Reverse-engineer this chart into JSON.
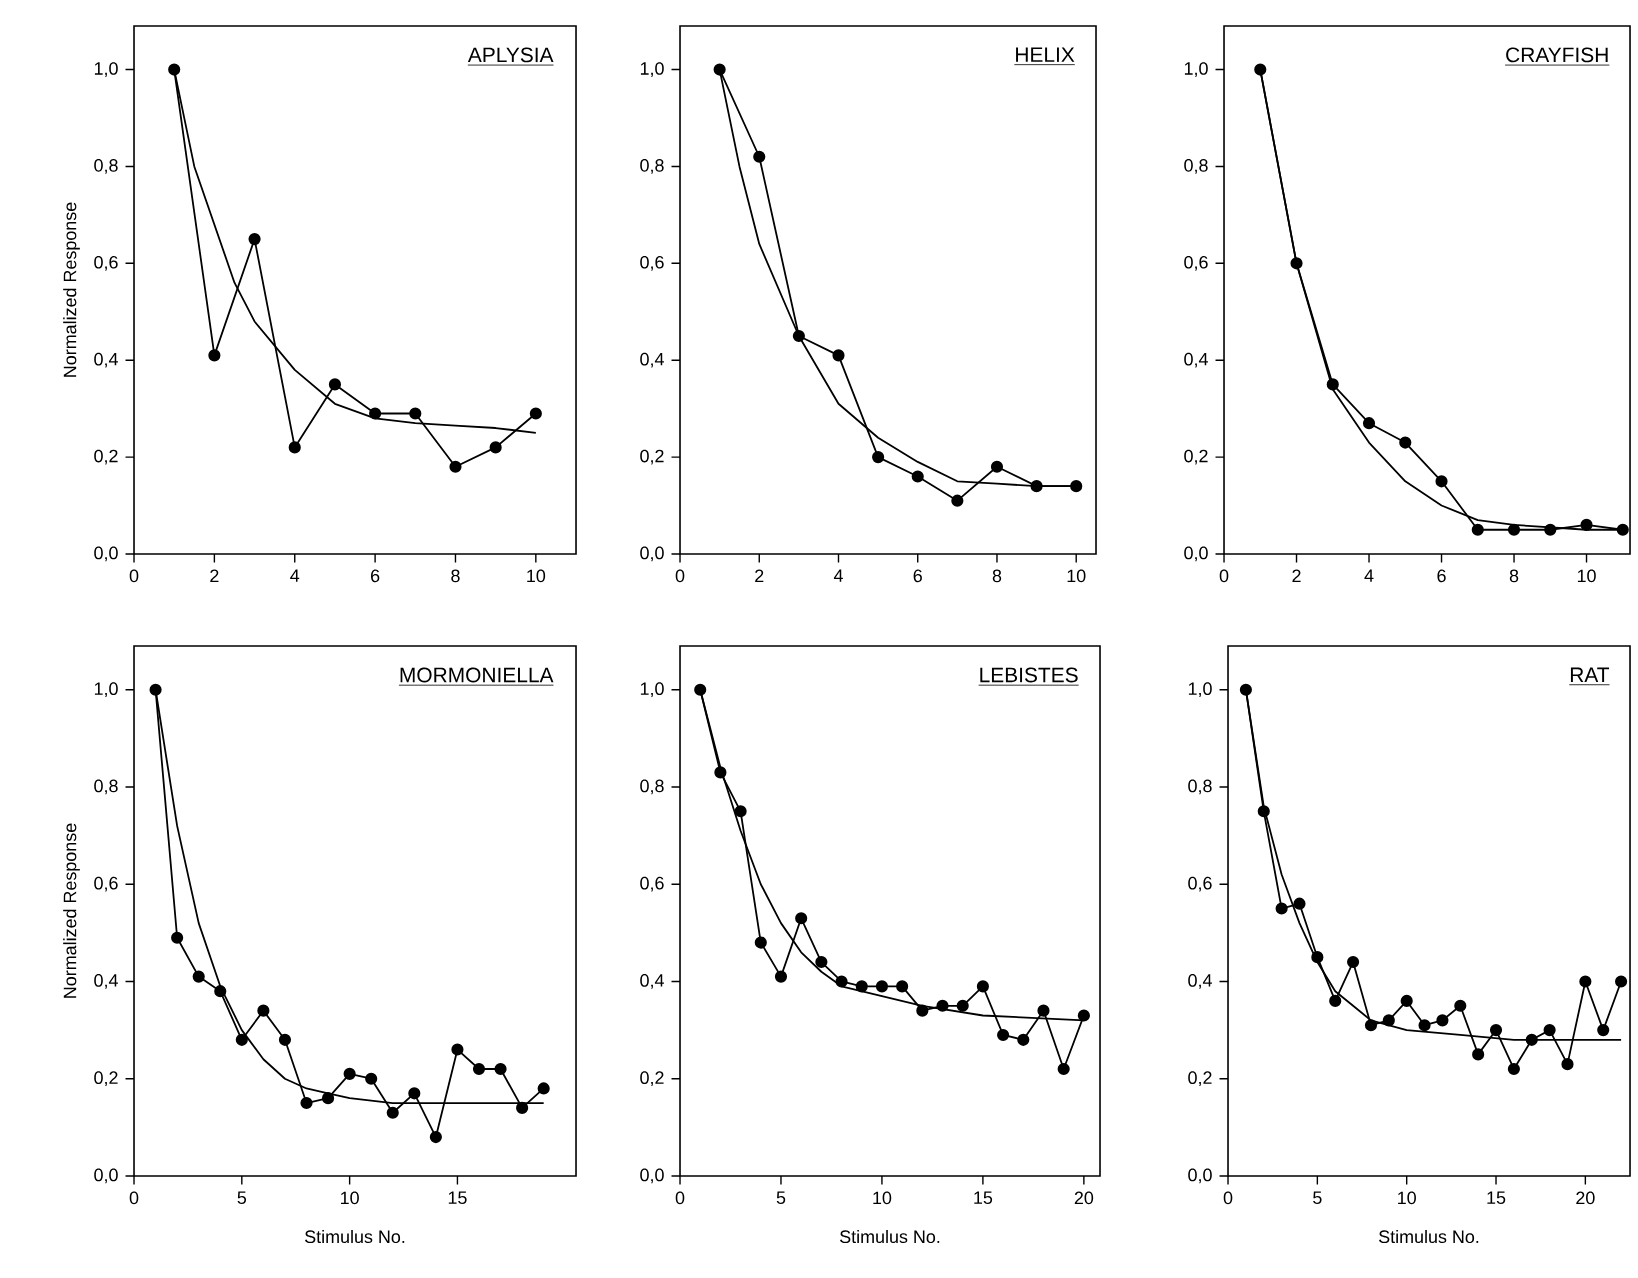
{
  "chart_data": [
    {
      "type": "line",
      "title": "APLYSIA",
      "ylabel": "Normalized Response",
      "xlim": [
        0,
        11
      ],
      "ylim": [
        0,
        1.09
      ],
      "xticks": [
        0,
        2,
        4,
        6,
        8,
        10
      ],
      "yticks": [
        {
          "value": 0,
          "label": "0,0"
        },
        {
          "value": 0.2,
          "label": "0,2"
        },
        {
          "value": 0.4,
          "label": "0,4"
        },
        {
          "value": 0.6,
          "label": "0,6"
        },
        {
          "value": 0.8,
          "label": "0,8"
        },
        {
          "value": 1.0,
          "label": "1,0"
        }
      ],
      "grid": false,
      "series": [
        {
          "color": "#000000",
          "marker": "circle",
          "line_style": "solid",
          "x": [
            1,
            2,
            3,
            4,
            5,
            6,
            7,
            8,
            9,
            10
          ],
          "values": [
            1.0,
            0.41,
            0.65,
            0.22,
            0.35,
            0.29,
            0.29,
            0.18,
            0.22,
            0.29
          ]
        },
        {
          "color": "#000000",
          "marker": "none",
          "line_style": "solid",
          "x": [
            1,
            1.5,
            2,
            2.5,
            3,
            4,
            5,
            6,
            7,
            8,
            9,
            10
          ],
          "values": [
            1.0,
            0.8,
            0.68,
            0.56,
            0.48,
            0.38,
            0.31,
            0.28,
            0.27,
            0.265,
            0.26,
            0.25
          ]
        }
      ]
    },
    {
      "type": "line",
      "title": "HELIX",
      "xlim": [
        0,
        10.5
      ],
      "ylim": [
        0,
        1.09
      ],
      "xticks": [
        0,
        2,
        4,
        6,
        8,
        10
      ],
      "yticks": [
        {
          "value": 0,
          "label": "0,0"
        },
        {
          "value": 0.2,
          "label": "0,2"
        },
        {
          "value": 0.4,
          "label": "0,4"
        },
        {
          "value": 0.6,
          "label": "0,6"
        },
        {
          "value": 0.8,
          "label": "0,8"
        },
        {
          "value": 1.0,
          "label": "1,0"
        }
      ],
      "grid": false,
      "series": [
        {
          "color": "#000000",
          "marker": "circle",
          "line_style": "solid",
          "x": [
            1,
            2,
            3,
            4,
            5,
            6,
            7,
            8,
            9,
            10
          ],
          "values": [
            1.0,
            0.82,
            0.45,
            0.41,
            0.2,
            0.16,
            0.11,
            0.18,
            0.14,
            0.14
          ]
        },
        {
          "color": "#000000",
          "marker": "none",
          "line_style": "solid",
          "x": [
            1,
            1.5,
            2,
            3,
            4,
            5,
            6,
            7,
            8,
            9,
            10
          ],
          "values": [
            1.0,
            0.8,
            0.64,
            0.45,
            0.31,
            0.24,
            0.19,
            0.15,
            0.145,
            0.14,
            0.14
          ]
        }
      ]
    },
    {
      "type": "line",
      "title": "CRAYFISH",
      "xlim": [
        0,
        11.2
      ],
      "ylim": [
        0,
        1.09
      ],
      "xticks": [
        0,
        2,
        4,
        6,
        8,
        10
      ],
      "yticks": [
        {
          "value": 0,
          "label": "0,0"
        },
        {
          "value": 0.2,
          "label": "0,2"
        },
        {
          "value": 0.4,
          "label": "0,4"
        },
        {
          "value": 0.6,
          "label": "0,6"
        },
        {
          "value": 0.8,
          "label": "0,8"
        },
        {
          "value": 1.0,
          "label": "1,0"
        }
      ],
      "grid": false,
      "series": [
        {
          "color": "#000000",
          "marker": "circle",
          "line_style": "solid",
          "x": [
            1,
            2,
            3,
            4,
            5,
            6,
            7,
            8,
            9,
            10,
            11
          ],
          "values": [
            1.0,
            0.6,
            0.35,
            0.27,
            0.23,
            0.15,
            0.05,
            0.05,
            0.05,
            0.06,
            0.05
          ]
        },
        {
          "color": "#000000",
          "marker": "none",
          "line_style": "solid",
          "x": [
            1,
            2,
            3,
            4,
            5,
            6,
            7,
            8,
            9,
            10,
            11
          ],
          "values": [
            1.0,
            0.6,
            0.34,
            0.23,
            0.15,
            0.1,
            0.07,
            0.06,
            0.055,
            0.05,
            0.05
          ]
        }
      ]
    },
    {
      "type": "line",
      "title": "MORMONIELLA",
      "xlabel": "Stimulus No.",
      "ylabel": "Normalized Response",
      "xlim": [
        0,
        20.5
      ],
      "ylim": [
        0,
        1.09
      ],
      "xticks": [
        0,
        5,
        10,
        15
      ],
      "yticks": [
        {
          "value": 0,
          "label": "0,0"
        },
        {
          "value": 0.2,
          "label": "0,2"
        },
        {
          "value": 0.4,
          "label": "0,4"
        },
        {
          "value": 0.6,
          "label": "0,6"
        },
        {
          "value": 0.8,
          "label": "0,8"
        },
        {
          "value": 1.0,
          "label": "1,0"
        }
      ],
      "grid": false,
      "series": [
        {
          "color": "#000000",
          "marker": "circle",
          "line_style": "solid",
          "x": [
            1,
            2,
            3,
            4,
            5,
            6,
            7,
            8,
            9,
            10,
            11,
            12,
            13,
            14,
            15,
            16,
            17,
            18,
            19
          ],
          "values": [
            1.0,
            0.49,
            0.41,
            0.38,
            0.28,
            0.34,
            0.28,
            0.15,
            0.16,
            0.21,
            0.2,
            0.13,
            0.17,
            0.08,
            0.26,
            0.22,
            0.22,
            0.14,
            0.18
          ]
        },
        {
          "color": "#000000",
          "marker": "none",
          "line_style": "solid",
          "x": [
            1,
            2,
            3,
            4,
            5,
            6,
            7,
            8,
            9,
            10,
            12,
            15,
            19
          ],
          "values": [
            1.0,
            0.72,
            0.52,
            0.39,
            0.3,
            0.24,
            0.2,
            0.18,
            0.17,
            0.16,
            0.15,
            0.15,
            0.15
          ]
        }
      ]
    },
    {
      "type": "line",
      "title": "LEBISTES",
      "xlabel": "Stimulus No.",
      "xlim": [
        0,
        20.8
      ],
      "ylim": [
        0,
        1.09
      ],
      "xticks": [
        0,
        5,
        10,
        15,
        20
      ],
      "yticks": [
        {
          "value": 0,
          "label": "0,0"
        },
        {
          "value": 0.2,
          "label": "0,2"
        },
        {
          "value": 0.4,
          "label": "0,4"
        },
        {
          "value": 0.6,
          "label": "0,6"
        },
        {
          "value": 0.8,
          "label": "0,8"
        },
        {
          "value": 1.0,
          "label": "1,0"
        }
      ],
      "grid": false,
      "series": [
        {
          "color": "#000000",
          "marker": "circle",
          "line_style": "solid",
          "x": [
            1,
            2,
            3,
            4,
            5,
            6,
            7,
            8,
            9,
            10,
            11,
            12,
            13,
            14,
            15,
            16,
            17,
            18,
            19,
            20
          ],
          "values": [
            1.0,
            0.83,
            0.75,
            0.48,
            0.41,
            0.53,
            0.44,
            0.4,
            0.39,
            0.39,
            0.39,
            0.34,
            0.35,
            0.35,
            0.39,
            0.29,
            0.28,
            0.34,
            0.22,
            0.33
          ]
        },
        {
          "color": "#000000",
          "marker": "none",
          "line_style": "solid",
          "x": [
            1,
            2,
            3,
            4,
            5,
            6,
            7,
            8,
            10,
            12,
            15,
            20
          ],
          "values": [
            1.0,
            0.84,
            0.71,
            0.6,
            0.52,
            0.46,
            0.42,
            0.39,
            0.37,
            0.35,
            0.33,
            0.32
          ]
        }
      ]
    },
    {
      "type": "line",
      "title": "RAT",
      "xlabel": "Stimulus No.",
      "xlim": [
        0,
        22.5
      ],
      "ylim": [
        0,
        1.09
      ],
      "xticks": [
        0,
        5,
        10,
        15,
        20
      ],
      "yticks": [
        {
          "value": 0,
          "label": "0,0"
        },
        {
          "value": 0.2,
          "label": "0,2"
        },
        {
          "value": 0.4,
          "label": "0,4"
        },
        {
          "value": 0.6,
          "label": "0,6"
        },
        {
          "value": 0.8,
          "label": "0,8"
        },
        {
          "value": 1.0,
          "label": "1,0"
        }
      ],
      "grid": false,
      "series": [
        {
          "color": "#000000",
          "marker": "circle",
          "line_style": "solid",
          "x": [
            1,
            2,
            3,
            4,
            5,
            6,
            7,
            8,
            9,
            10,
            11,
            12,
            13,
            14,
            15,
            16,
            17,
            18,
            19,
            20,
            21,
            22
          ],
          "values": [
            1.0,
            0.75,
            0.55,
            0.56,
            0.45,
            0.36,
            0.44,
            0.31,
            0.32,
            0.36,
            0.31,
            0.32,
            0.35,
            0.25,
            0.3,
            0.22,
            0.28,
            0.3,
            0.23,
            0.4,
            0.3,
            0.4
          ]
        },
        {
          "color": "#000000",
          "marker": "none",
          "line_style": "solid",
          "x": [
            1,
            2,
            3,
            4,
            5,
            6,
            7,
            8,
            10,
            13,
            16,
            22
          ],
          "values": [
            1.0,
            0.76,
            0.62,
            0.52,
            0.44,
            0.38,
            0.35,
            0.32,
            0.3,
            0.29,
            0.28,
            0.28
          ]
        }
      ]
    }
  ]
}
